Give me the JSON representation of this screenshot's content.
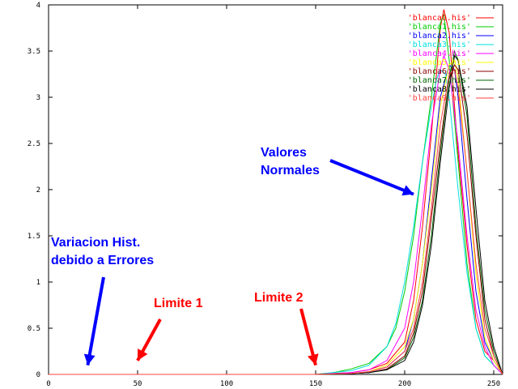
{
  "chart_data": {
    "type": "line",
    "title": "",
    "xlabel": "",
    "ylabel": "",
    "xlim": [
      0,
      255
    ],
    "ylim": [
      0,
      4
    ],
    "x_ticks": [
      "0",
      "50",
      "100",
      "150",
      "200",
      "250"
    ],
    "y_ticks": [
      "0",
      "0.5",
      "1",
      "1.5",
      "2",
      "2.5",
      "3",
      "3.5",
      "4"
    ],
    "grid": false,
    "legend_placement": "top-right",
    "series": [
      {
        "name": "'blanca0.his'",
        "color": "#ff0000",
        "x": [
          0,
          150,
          170,
          180,
          190,
          200,
          205,
          210,
          215,
          220,
          222,
          225,
          228,
          230,
          235,
          240,
          245,
          250,
          255
        ],
        "y": [
          0,
          0,
          0.02,
          0.05,
          0.12,
          0.35,
          0.8,
          1.6,
          2.6,
          3.75,
          3.95,
          3.7,
          2.9,
          2.4,
          1.4,
          0.6,
          0.25,
          0.15,
          0
        ]
      },
      {
        "name": "'blanca1.his'",
        "color": "#00cc00",
        "x": [
          0,
          150,
          160,
          170,
          180,
          190,
          195,
          200,
          205,
          210,
          215,
          220,
          222,
          225,
          230,
          235,
          240,
          245,
          250,
          255
        ],
        "y": [
          0,
          0,
          0.02,
          0.06,
          0.12,
          0.3,
          0.5,
          0.9,
          1.5,
          2.3,
          3.0,
          3.8,
          3.9,
          3.4,
          2.3,
          1.2,
          0.5,
          0.2,
          0.1,
          0
        ]
      },
      {
        "name": "'blanca2.his'",
        "color": "#0000ff",
        "x": [
          0,
          150,
          170,
          180,
          190,
          200,
          205,
          210,
          215,
          220,
          225,
          228,
          230,
          235,
          240,
          245,
          250,
          255
        ],
        "y": [
          0,
          0,
          0.01,
          0.03,
          0.08,
          0.25,
          0.6,
          1.2,
          2.1,
          3.0,
          3.35,
          3.3,
          3.0,
          1.9,
          0.9,
          0.35,
          0.15,
          0
        ]
      },
      {
        "name": "'blanca3.his'",
        "color": "#00e0e0",
        "x": [
          0,
          150,
          170,
          180,
          190,
          195,
          200,
          205,
          210,
          215,
          218,
          220,
          223,
          225,
          230,
          235,
          240,
          245,
          250,
          255
        ],
        "y": [
          0,
          0,
          0.04,
          0.1,
          0.3,
          0.55,
          1.0,
          1.6,
          2.3,
          2.9,
          3.2,
          3.3,
          3.25,
          3.0,
          2.0,
          1.1,
          0.5,
          0.2,
          0.1,
          0
        ]
      },
      {
        "name": "'blanca4.his'",
        "color": "#ff00ff",
        "x": [
          0,
          150,
          170,
          180,
          190,
          200,
          205,
          210,
          215,
          220,
          222,
          225,
          230,
          235,
          240,
          245,
          250,
          255
        ],
        "y": [
          0,
          0,
          0.02,
          0.05,
          0.15,
          0.5,
          1.0,
          1.8,
          2.7,
          3.3,
          3.45,
          3.3,
          2.5,
          1.5,
          0.7,
          0.3,
          0.1,
          0
        ]
      },
      {
        "name": "'blanca5.his'",
        "color": "#ffff00",
        "x": [
          0,
          150,
          170,
          180,
          190,
          200,
          205,
          210,
          215,
          220,
          225,
          228,
          230,
          235,
          240,
          245,
          250,
          255
        ],
        "y": [
          0,
          0,
          0.01,
          0.03,
          0.1,
          0.3,
          0.6,
          1.2,
          2.0,
          2.9,
          3.35,
          3.4,
          3.2,
          2.2,
          1.1,
          0.4,
          0.15,
          0
        ]
      },
      {
        "name": "'blanca6.his'",
        "color": "#8b0000",
        "x": [
          0,
          150,
          170,
          180,
          190,
          200,
          205,
          210,
          215,
          220,
          225,
          228,
          230,
          235,
          240,
          245,
          250,
          255
        ],
        "y": [
          0,
          0,
          0.01,
          0.02,
          0.06,
          0.2,
          0.45,
          0.9,
          1.7,
          2.5,
          3.2,
          3.35,
          3.3,
          2.6,
          1.5,
          0.6,
          0.2,
          0
        ]
      },
      {
        "name": "'blanca7.his'",
        "color": "#006400",
        "x": [
          0,
          150,
          170,
          180,
          190,
          200,
          205,
          210,
          215,
          220,
          225,
          228,
          230,
          235,
          240,
          245,
          250,
          255
        ],
        "y": [
          0,
          0,
          0.01,
          0.02,
          0.05,
          0.18,
          0.4,
          0.8,
          1.5,
          2.4,
          3.2,
          3.5,
          3.4,
          2.8,
          1.6,
          0.7,
          0.25,
          0
        ]
      },
      {
        "name": "'blanca8.his'",
        "color": "#000000",
        "x": [
          0,
          150,
          170,
          180,
          190,
          200,
          205,
          210,
          215,
          220,
          225,
          228,
          230,
          235,
          240,
          245,
          250,
          255
        ],
        "y": [
          0,
          0,
          0.01,
          0.02,
          0.05,
          0.15,
          0.35,
          0.75,
          1.4,
          2.3,
          3.1,
          3.45,
          3.4,
          2.9,
          1.8,
          0.8,
          0.3,
          0
        ]
      },
      {
        "name": "'blanca9.his'",
        "color": "#ff4040",
        "x": [
          0,
          150,
          170,
          180,
          190,
          200,
          205,
          210,
          215,
          220,
          225,
          228,
          230,
          235,
          240,
          245,
          250,
          255
        ],
        "y": [
          0,
          0,
          0.01,
          0.03,
          0.08,
          0.25,
          0.5,
          1.0,
          1.8,
          2.7,
          3.25,
          3.3,
          3.1,
          2.2,
          1.2,
          0.5,
          0.2,
          0
        ]
      }
    ],
    "annotations": [
      {
        "text_lines": [
          "Valores",
          "Normales"
        ],
        "color": "#0000ff",
        "arrow_target": [
          205,
          1.95
        ]
      },
      {
        "text_lines": [
          "Variacion Hist.",
          "debido a Errores"
        ],
        "color": "#0000ff",
        "arrow_target": [
          22,
          0.1
        ]
      },
      {
        "text_lines": [
          "Limite 1"
        ],
        "color": "#ff0000",
        "arrow_target": [
          50,
          0.15
        ]
      },
      {
        "text_lines": [
          "Limite 2"
        ],
        "color": "#ff0000",
        "arrow_target": [
          150,
          0.1
        ]
      }
    ]
  }
}
